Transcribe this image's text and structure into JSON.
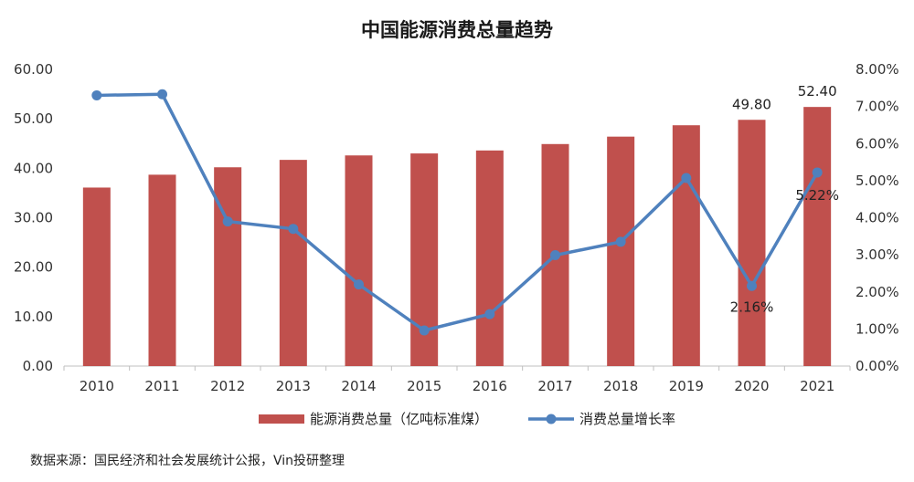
{
  "source_note": "数据来源：国民经济和社会发展统计公报，Vin投研整理",
  "colors": {
    "bar": "#c0504d",
    "line": "#4f81bd",
    "axis": "#bfbfbf"
  },
  "chart_data": {
    "type": "bar+line",
    "title": "中国能源消费总量趋势",
    "categories": [
      "2010",
      "2011",
      "2012",
      "2013",
      "2014",
      "2015",
      "2016",
      "2017",
      "2018",
      "2019",
      "2020",
      "2021"
    ],
    "y_left": {
      "min": 0,
      "max": 60,
      "step": 10,
      "decimals": 2,
      "suffix": ""
    },
    "y_right": {
      "min": 0,
      "max": 8,
      "step": 1,
      "decimals": 2,
      "suffix": "%"
    },
    "series": [
      {
        "name": "能源消费总量（亿吨标准煤）",
        "type": "bar",
        "axis": "left",
        "values": [
          36.1,
          38.7,
          40.2,
          41.7,
          42.6,
          43.0,
          43.6,
          44.9,
          46.4,
          48.7,
          49.8,
          52.4
        ]
      },
      {
        "name": "消费总量增长率",
        "type": "line",
        "axis": "right",
        "values": [
          7.3,
          7.33,
          3.9,
          3.7,
          2.2,
          0.96,
          1.4,
          2.99,
          3.35,
          5.07,
          2.16,
          5.22
        ]
      }
    ],
    "data_labels": [
      {
        "series": 0,
        "index": 10,
        "text": "49.80"
      },
      {
        "series": 0,
        "index": 11,
        "text": "52.40"
      },
      {
        "series": 1,
        "index": 10,
        "text": "2.16%"
      },
      {
        "series": 1,
        "index": 11,
        "text": "5.22%"
      }
    ],
    "legend_position": "bottom",
    "grid": false
  }
}
